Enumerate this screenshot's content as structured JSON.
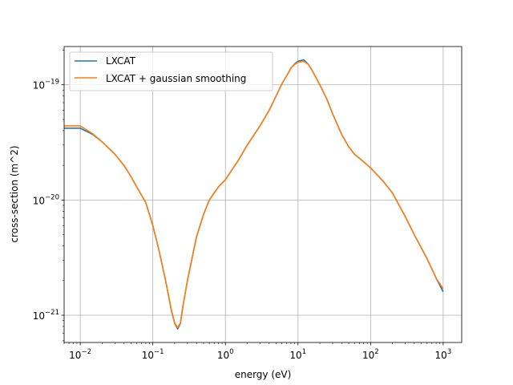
{
  "chart_data": {
    "type": "line",
    "title": "",
    "xlabel": "energy (eV)",
    "ylabel": "cross-section (m^2)",
    "xscale": "log",
    "yscale": "log",
    "xlim": [
      0.006,
      1800
    ],
    "ylim": [
      5.8e-22,
      2.15e-19
    ],
    "grid": true,
    "legend_position": "upper left",
    "x_ticks": [
      {
        "value": 0.01,
        "base": "10",
        "exp": "−2"
      },
      {
        "value": 0.1,
        "base": "10",
        "exp": "−1"
      },
      {
        "value": 1,
        "base": "10",
        "exp": "0"
      },
      {
        "value": 10,
        "base": "10",
        "exp": "1"
      },
      {
        "value": 100,
        "base": "10",
        "exp": "2"
      },
      {
        "value": 1000,
        "base": "10",
        "exp": "3"
      }
    ],
    "y_ticks": [
      {
        "value": 1e-21,
        "base": "10",
        "exp": "−21"
      },
      {
        "value": 1e-20,
        "base": "10",
        "exp": "−20"
      },
      {
        "value": 1e-19,
        "base": "10",
        "exp": "−19"
      }
    ],
    "series": [
      {
        "name": "LXCAT",
        "color": "#1f77b4",
        "x": [
          0.006,
          0.01,
          0.015,
          0.02,
          0.03,
          0.04,
          0.05,
          0.06,
          0.08,
          0.1,
          0.12,
          0.15,
          0.18,
          0.2,
          0.22,
          0.24,
          0.26,
          0.3,
          0.35,
          0.4,
          0.5,
          0.6,
          0.8,
          1,
          1.5,
          2,
          3,
          4,
          5,
          6,
          7,
          8,
          9,
          10,
          12,
          14,
          16,
          20,
          25,
          30,
          40,
          50,
          60,
          80,
          100,
          150,
          200,
          300,
          400,
          600,
          800,
          1000
        ],
        "y": [
          4.2e-20,
          4.2e-20,
          3.7e-20,
          3.2e-20,
          2.5e-20,
          2e-20,
          1.6e-20,
          1.3e-20,
          9.5e-21,
          6e-21,
          3.8e-21,
          2e-21,
          1.1e-21,
          8.5e-22,
          7.6e-22,
          8.5e-22,
          1.2e-21,
          2e-21,
          3.2e-21,
          4.8e-21,
          7.5e-21,
          1e-20,
          1.3e-20,
          1.5e-20,
          2.2e-20,
          3e-20,
          4.4e-20,
          6e-20,
          8e-20,
          1.02e-19,
          1.2e-19,
          1.4e-19,
          1.52e-19,
          1.6e-19,
          1.65e-19,
          1.5e-19,
          1.3e-19,
          1e-19,
          7.5e-20,
          5.6e-20,
          3.7e-20,
          2.9e-20,
          2.5e-20,
          2.15e-20,
          1.9e-20,
          1.45e-20,
          1.15e-20,
          7.2e-21,
          5e-21,
          3.1e-21,
          2.1e-21,
          1.6e-21
        ]
      },
      {
        "name": "LXCAT + gaussian smoothing",
        "color": "#ff7f0e",
        "x": [
          0.006,
          0.01,
          0.015,
          0.02,
          0.03,
          0.04,
          0.05,
          0.06,
          0.08,
          0.1,
          0.12,
          0.15,
          0.18,
          0.2,
          0.22,
          0.24,
          0.26,
          0.3,
          0.35,
          0.4,
          0.5,
          0.6,
          0.8,
          1,
          1.5,
          2,
          3,
          4,
          5,
          6,
          7,
          8,
          9,
          10,
          12,
          14,
          16,
          20,
          25,
          30,
          40,
          50,
          60,
          80,
          100,
          150,
          200,
          300,
          400,
          600,
          800,
          1000
        ],
        "y": [
          4.4e-20,
          4.4e-20,
          3.75e-20,
          3.2e-20,
          2.5e-20,
          2e-20,
          1.6e-20,
          1.3e-20,
          9.5e-21,
          6e-21,
          3.8e-21,
          2e-21,
          1.12e-21,
          8.6e-22,
          7.8e-22,
          8.6e-22,
          1.2e-21,
          2e-21,
          3.2e-21,
          4.8e-21,
          7.5e-21,
          1e-20,
          1.3e-20,
          1.5e-20,
          2.2e-20,
          3e-20,
          4.4e-20,
          6e-20,
          8e-20,
          1.02e-19,
          1.2e-19,
          1.4e-19,
          1.5e-19,
          1.57e-19,
          1.6e-19,
          1.5e-19,
          1.3e-19,
          1e-19,
          7.5e-20,
          5.6e-20,
          3.7e-20,
          2.9e-20,
          2.5e-20,
          2.15e-20,
          1.9e-20,
          1.45e-20,
          1.15e-20,
          7.2e-21,
          5e-21,
          3.1e-21,
          2.1e-21,
          1.7e-21
        ]
      }
    ]
  }
}
